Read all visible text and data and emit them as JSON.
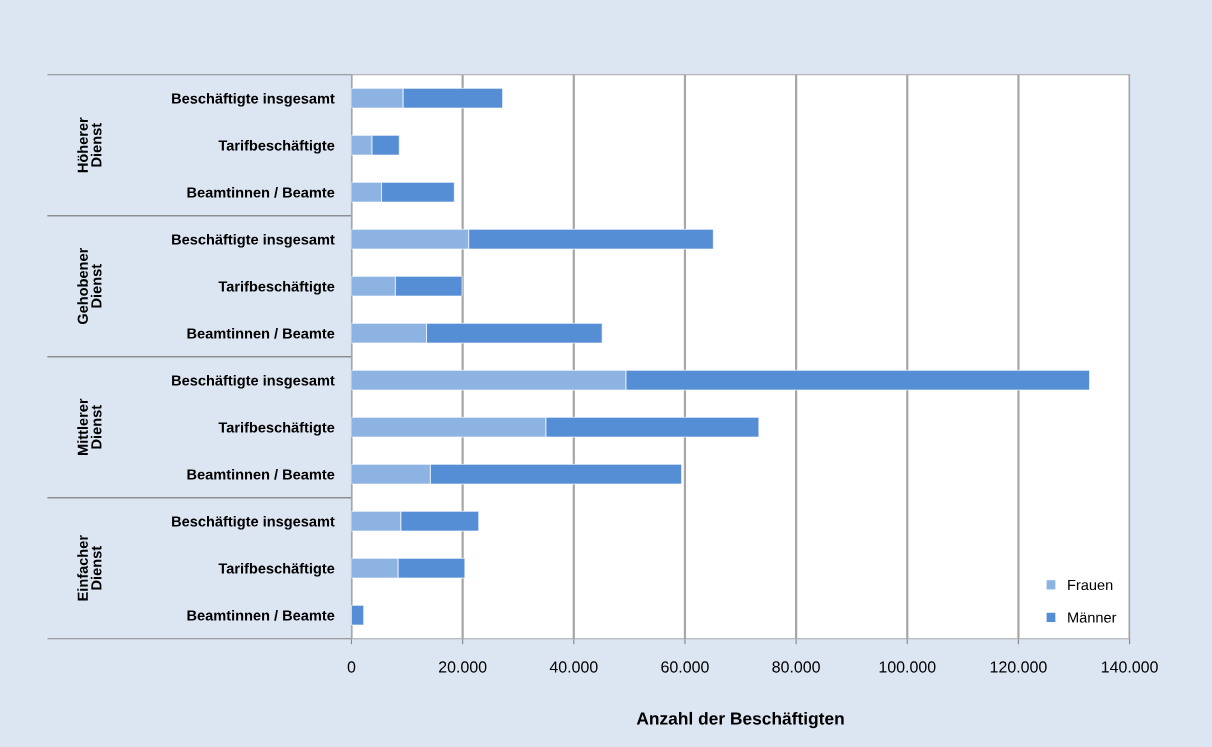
{
  "chart_data": {
    "type": "bar",
    "orientation": "horizontal",
    "stacked": true,
    "categories": [
      "Beschäftigte insgesamt",
      "Tarifbeschäftigte",
      "Beamtinnen / Beamte",
      "Beschäftigte insgesamt",
      "Tarifbeschäftigte",
      "Beamtinnen / Beamte",
      "Beschäftigte insgesamt",
      "Tarifbeschäftigte",
      "Beamtinnen / Beamte",
      "Beschäftigte insgesamt",
      "Tarifbeschäftigte",
      "Beamtinnen / Beamte"
    ],
    "annotations": [
      "Höherer\nDienst",
      "Gehobener\nDienst",
      "Mittlerer\nDienst",
      "Einfacher\nDienst"
    ],
    "series": [
      {
        "name": "Frauen",
        "color": "#8db3e2",
        "values": [
          9300,
          3700,
          5400,
          21100,
          7900,
          13500,
          49400,
          35000,
          14200,
          8900,
          8400,
          null
        ]
      },
      {
        "name": "Männer",
        "color": "#558ed5",
        "values": [
          17900,
          4900,
          13100,
          44000,
          12000,
          31600,
          83400,
          38300,
          45200,
          14000,
          12000,
          2200
        ]
      }
    ],
    "xlabel": "Anzahl der Beschäftigten",
    "xlim": [
      0,
      140000
    ],
    "xticks": [
      0,
      {
        "value": 20000,
        "label": "20.000"
      },
      {
        "value": 40000,
        "label": "40.000"
      },
      {
        "value": 60000,
        "label": "60.000"
      },
      {
        "value": 80000,
        "label": "80.000"
      },
      {
        "value": 100000,
        "label": "100.000"
      },
      {
        "value": 120000,
        "label": "120.000"
      },
      {
        "value": 140000,
        "label": "140.000"
      }
    ],
    "grid": "x",
    "legend": "bottom right"
  }
}
